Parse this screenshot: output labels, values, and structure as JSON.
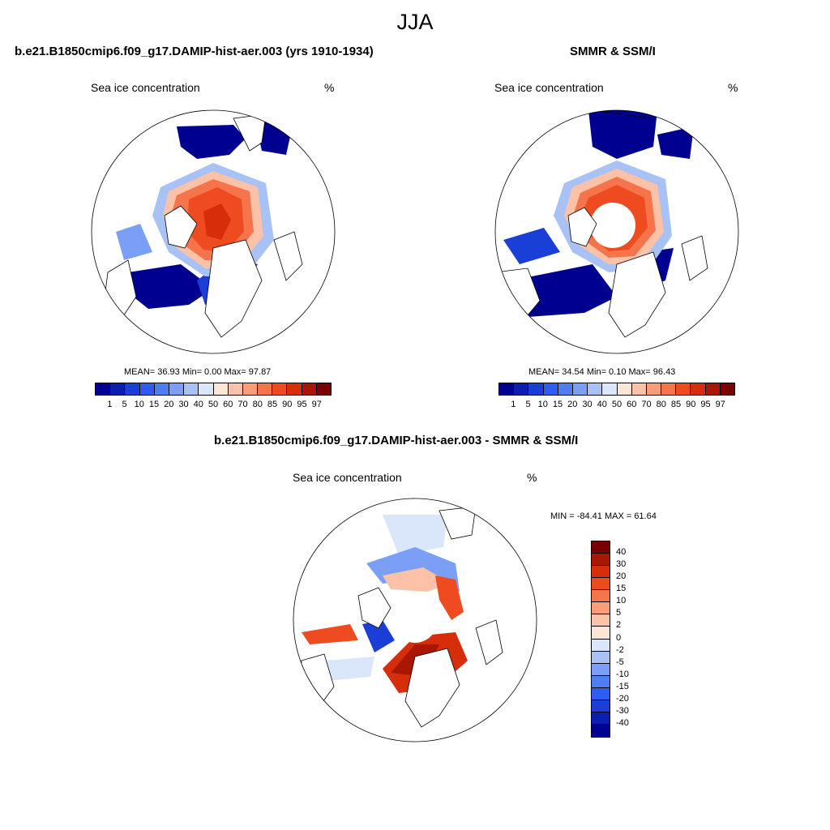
{
  "figure": {
    "suptitle": "JJA"
  },
  "panels": [
    {
      "id": "model",
      "title": "b.e21.B1850cmip6.f09_g17.DAMIP-hist-aer.003 (yrs 1910-1934)",
      "left_label": "Sea ice concentration",
      "right_label": "%",
      "stats": "MEAN=  36.93  Min=    0.00  Max=  97.87"
    },
    {
      "id": "obs",
      "title": "SMMR & SSM/I",
      "left_label": "Sea ice concentration",
      "right_label": "%",
      "stats": "MEAN=  34.54  Min=    0.10  Max=  96.43"
    },
    {
      "id": "diff",
      "title": "b.e21.B1850cmip6.f09_g17.DAMIP-hist-aer.003 - SMMR & SSM/I",
      "left_label": "Sea ice concentration",
      "right_label": "%",
      "stats": "MIN = -84.41 MAX =  61.64"
    }
  ],
  "colorbar_abs": {
    "ticks": [
      "1",
      "5",
      "10",
      "15",
      "20",
      "30",
      "40",
      "50",
      "60",
      "70",
      "80",
      "85",
      "90",
      "95",
      "97"
    ],
    "colors": [
      "#000090",
      "#0a1fb0",
      "#1a3fd6",
      "#2e5cf0",
      "#4f7df2",
      "#7a9ff4",
      "#a9c2f6",
      "#dae6fa",
      "#fde6d6",
      "#fcc2a8",
      "#fa9d78",
      "#f6744b",
      "#ee4c20",
      "#d62e0a",
      "#a81704",
      "#7a0000"
    ]
  },
  "colorbar_diff": {
    "ticks": [
      "40",
      "30",
      "20",
      "15",
      "10",
      "5",
      "2",
      "0",
      "-2",
      "-5",
      "-10",
      "-15",
      "-20",
      "-30",
      "-40"
    ],
    "colors": [
      "#7a0000",
      "#a81704",
      "#d62e0a",
      "#ee4c20",
      "#f6744b",
      "#fa9d78",
      "#fcc2a8",
      "#fde6d6",
      "#dae6fa",
      "#a9c2f6",
      "#7a9ff4",
      "#4f7df2",
      "#2e5cf0",
      "#1a3fd6",
      "#0a1fb0",
      "#000090"
    ]
  }
}
